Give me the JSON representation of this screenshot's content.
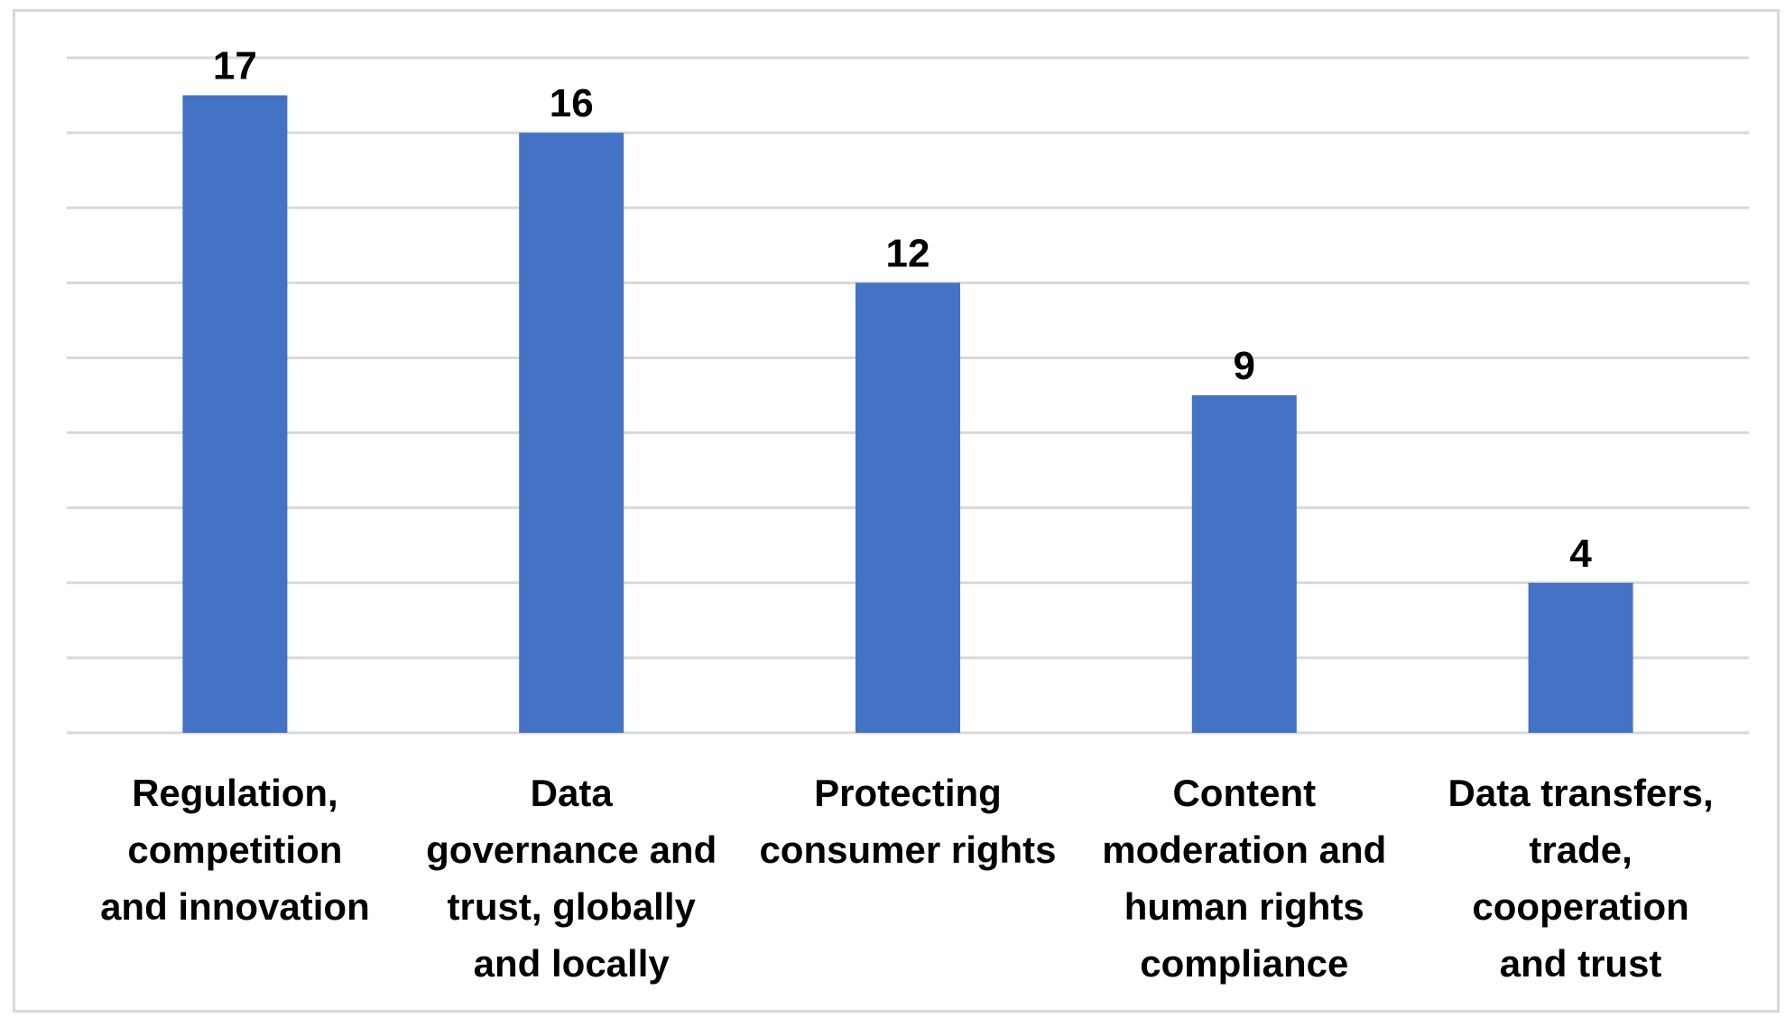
{
  "chart_data": {
    "type": "bar",
    "categories": [
      "Regulation, competition and innovation",
      "Data governance and trust, globally and locally",
      "Protecting consumer rights",
      "Content moderation and human rights compliance",
      "Data transfers, trade, cooperation and trust"
    ],
    "category_lines": [
      [
        "Regulation,",
        "competition",
        "and innovation"
      ],
      [
        "Data",
        "governance and",
        "trust, globally",
        "and locally"
      ],
      [
        "Protecting",
        "consumer rights"
      ],
      [
        "Content",
        "moderation and",
        "human rights",
        "compliance"
      ],
      [
        "Data transfers,",
        "trade,",
        "cooperation",
        "and trust"
      ]
    ],
    "values": [
      17,
      16,
      12,
      9,
      4
    ],
    "ylim": [
      0,
      18
    ],
    "grid": true,
    "legend": "none",
    "bar_color": "#4472c4",
    "grid_color": "#d9d9d9"
  }
}
